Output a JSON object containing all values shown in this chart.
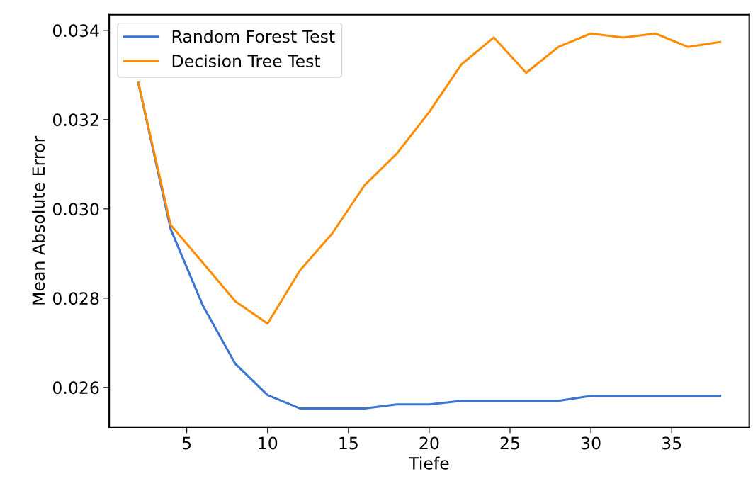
{
  "chart_data": {
    "type": "line",
    "xlabel": "Tiefe",
    "ylabel": "Mean Absolute Error",
    "x": [
      2,
      4,
      6,
      8,
      10,
      12,
      14,
      16,
      18,
      20,
      22,
      24,
      26,
      28,
      30,
      32,
      34,
      36,
      38
    ],
    "series": [
      {
        "name": "Random Forest Test",
        "color": "#3b75d3",
        "values": [
          0.03283,
          0.02955,
          0.02783,
          0.02653,
          0.02583,
          0.02553,
          0.02553,
          0.02553,
          0.02562,
          0.02562,
          0.0257,
          0.0257,
          0.0257,
          0.0257,
          0.02581,
          0.02581,
          0.02581,
          0.02581,
          0.02581
        ]
      },
      {
        "name": "Decision Tree Test",
        "color": "#ff8c00",
        "values": [
          0.03283,
          0.02964,
          0.02879,
          0.02793,
          0.02743,
          0.02862,
          0.02945,
          0.03053,
          0.03124,
          0.03217,
          0.03324,
          0.03384,
          0.03305,
          0.03363,
          0.03393,
          0.03384,
          0.03393,
          0.03363,
          0.03374
        ]
      }
    ],
    "xlim": [
      0.2,
      39.8
    ],
    "xticks": [
      5,
      10,
      15,
      20,
      25,
      30,
      35
    ],
    "ylim": [
      0.02511,
      0.03435
    ],
    "yticks": [
      {
        "value": 0.026,
        "label": "0.026"
      },
      {
        "value": 0.028,
        "label": "0.028"
      },
      {
        "value": 0.03,
        "label": "0.030"
      },
      {
        "value": 0.032,
        "label": "0.032"
      },
      {
        "value": 0.034,
        "label": "0.034"
      }
    ],
    "grid": false,
    "legend": "top left",
    "marker": "none",
    "line_style": "solid"
  }
}
